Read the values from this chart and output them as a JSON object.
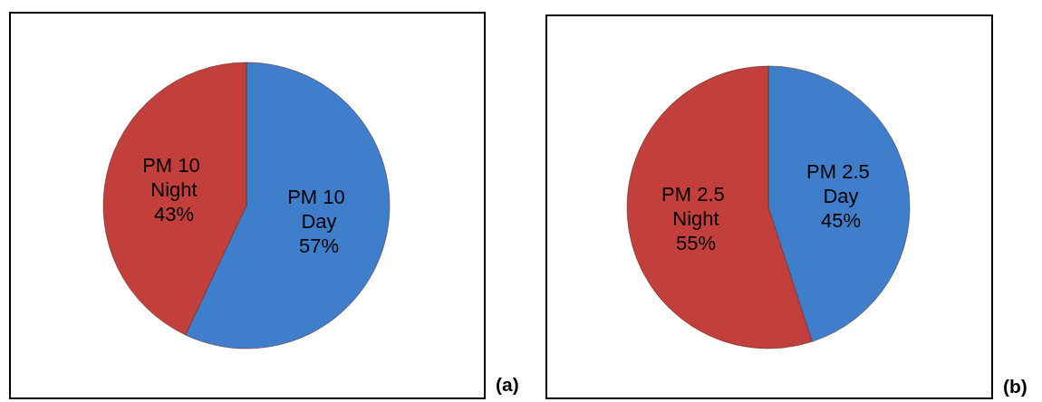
{
  "chart_data": [
    {
      "type": "pie",
      "title": "(a)",
      "categories": [
        "PM 10 Day",
        "PM 10 Night"
      ],
      "values": [
        57,
        43
      ],
      "value_labels": [
        "57%",
        "43%"
      ],
      "colors": [
        "#3f7ecb",
        "#c23f3b"
      ]
    },
    {
      "type": "pie",
      "title": "(b)",
      "categories": [
        "PM 2.5 Day",
        "PM 2.5 Night"
      ],
      "values": [
        45,
        55
      ],
      "value_labels": [
        "45%",
        "55%"
      ],
      "colors": [
        "#3f7ecb",
        "#c23f3b"
      ]
    }
  ]
}
